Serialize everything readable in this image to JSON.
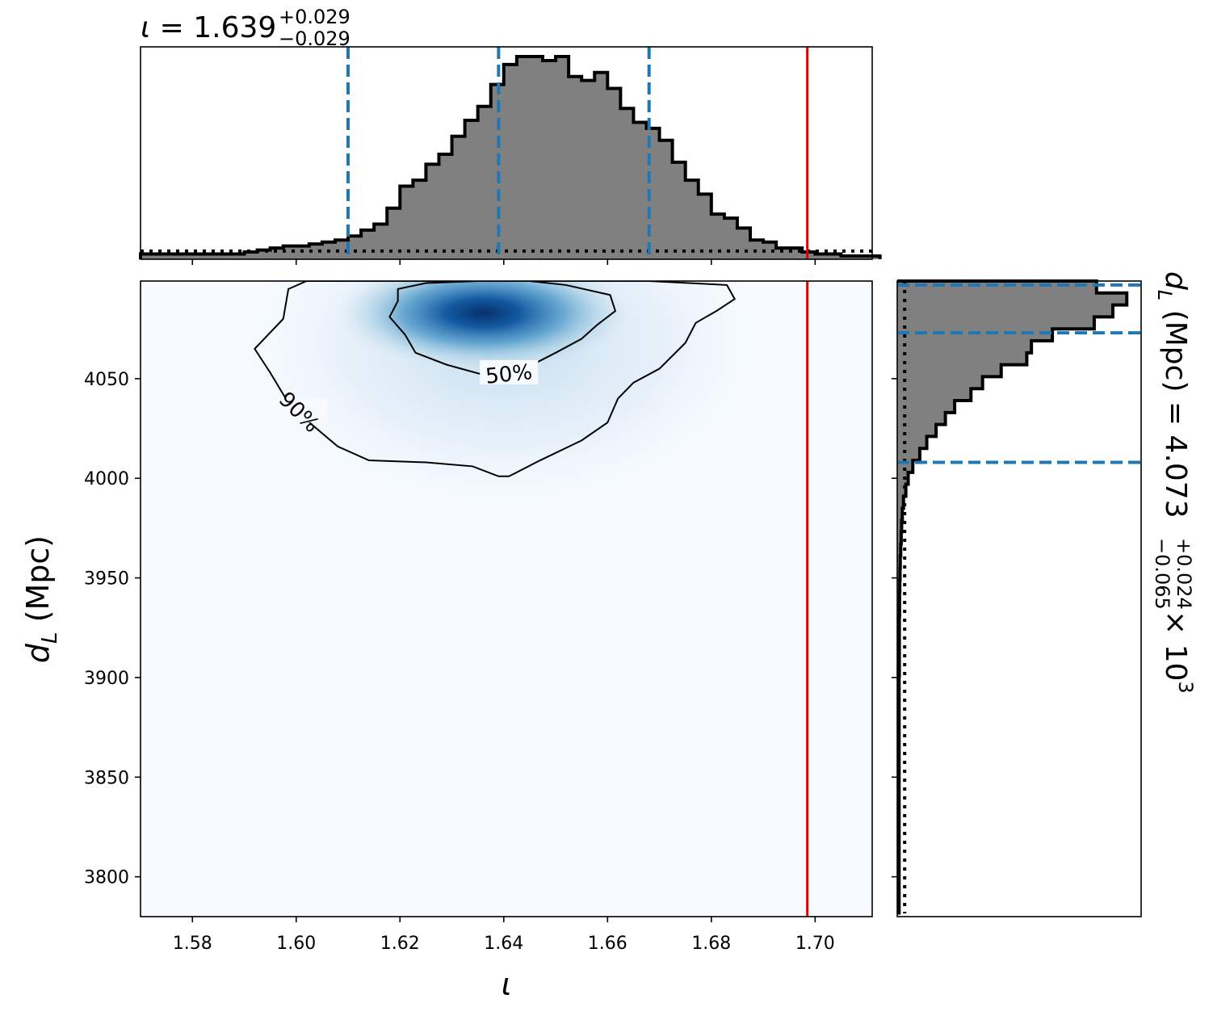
{
  "chart_data": {
    "type": "corner",
    "x_param": {
      "symbol": "ι",
      "median": "1.639",
      "err_plus": "+0.029",
      "err_minus": "−0.029",
      "median_value": 1.639,
      "lower": 1.61,
      "upper": 1.668,
      "injected": 1.6985,
      "xlim": [
        1.57,
        1.711
      ],
      "ticks": [
        1.58,
        1.6,
        1.62,
        1.64,
        1.66,
        1.68,
        1.7
      ],
      "tick_labels": [
        "1.58",
        "1.60",
        "1.62",
        "1.64",
        "1.66",
        "1.68",
        "1.70"
      ]
    },
    "y_param": {
      "symbol": "d",
      "subscript": "L",
      "unit": "(Mpc)",
      "median": "4.073",
      "err_plus": "+0.024",
      "err_minus": "−0.065",
      "exponent_text": "× 10",
      "exponent": "3",
      "median_value": 4073,
      "lower": 4008,
      "upper": 4097,
      "ylim": [
        3780,
        4099
      ],
      "ticks": [
        3800,
        3850,
        3900,
        3950,
        4000,
        4050
      ],
      "tick_labels": [
        "3800",
        "3850",
        "3900",
        "3950",
        "4000",
        "4050"
      ]
    },
    "top_hist": {
      "edges_start": 1.57,
      "bin_width": 0.0025,
      "counts": [
        0.01,
        0.01,
        0.01,
        0.01,
        0.01,
        0.01,
        0.01,
        0.01,
        0.02,
        0.03,
        0.04,
        0.05,
        0.05,
        0.06,
        0.07,
        0.08,
        0.1,
        0.13,
        0.16,
        0.24,
        0.35,
        0.38,
        0.46,
        0.51,
        0.6,
        0.68,
        0.75,
        0.86,
        0.96,
        1.0,
        1.0,
        0.98,
        1.0,
        0.9,
        0.88,
        0.92,
        0.84,
        0.74,
        0.67,
        0.64,
        0.58,
        0.47,
        0.38,
        0.31,
        0.21,
        0.19,
        0.14,
        0.08,
        0.07,
        0.04,
        0.04,
        0.02,
        0.01,
        0.01,
        0.0,
        0.0,
        0.0
      ],
      "uniform_level": 0.025,
      "quantiles": [
        1.61,
        1.639,
        1.668
      ]
    },
    "right_hist": {
      "edges_top": 4099,
      "bin_width": 6,
      "counts": [
        0.85,
        0.98,
        0.92,
        0.84,
        0.66,
        0.57,
        0.55,
        0.44,
        0.36,
        0.31,
        0.24,
        0.2,
        0.16,
        0.12,
        0.09,
        0.06,
        0.04,
        0.03,
        0.02,
        0.015,
        0.012,
        0.01,
        0.008,
        0.006,
        0.005,
        0.004,
        0.003,
        0.003,
        0.002,
        0.002,
        0.002,
        0.002,
        0.002,
        0.001,
        0.001,
        0.001,
        0.001,
        0.001,
        0.001,
        0.001,
        0.001,
        0.001,
        0.001,
        0.001,
        0.001,
        0.001,
        0.001,
        0.001,
        0.001,
        0.001,
        0.001,
        0.001,
        0.001
      ],
      "uniform_level": 0.025,
      "quantiles": [
        4097,
        4073,
        4008
      ]
    },
    "density_peak": {
      "x": 1.636,
      "y": 4083
    },
    "contours": [
      {
        "label": "50%",
        "points": [
          [
            1.6196,
            4095
          ],
          [
            1.625,
            4098
          ],
          [
            1.635,
            4099
          ],
          [
            1.645,
            4099
          ],
          [
            1.652,
            4097
          ],
          [
            1.6605,
            4092
          ],
          [
            1.6615,
            4084
          ],
          [
            1.658,
            4077
          ],
          [
            1.655,
            4070
          ],
          [
            1.65,
            4063
          ],
          [
            1.644,
            4055
          ],
          [
            1.636,
            4052
          ],
          [
            1.629,
            4057
          ],
          [
            1.623,
            4063
          ],
          [
            1.621,
            4072
          ],
          [
            1.618,
            4081
          ],
          [
            1.6196,
            4089
          ]
        ],
        "label_pos": [
          1.641,
          4052
        ]
      },
      {
        "label": "90%",
        "points": [
          [
            1.5985,
            4095
          ],
          [
            1.602,
            4099
          ],
          [
            1.625,
            4099
          ],
          [
            1.655,
            4099
          ],
          [
            1.668,
            4099
          ],
          [
            1.683,
            4097
          ],
          [
            1.6845,
            4090
          ],
          [
            1.681,
            4084
          ],
          [
            1.677,
            4078
          ],
          [
            1.675,
            4068
          ],
          [
            1.67,
            4055
          ],
          [
            1.665,
            4048
          ],
          [
            1.662,
            4040
          ],
          [
            1.66,
            4028
          ],
          [
            1.655,
            4019
          ],
          [
            1.647,
            4009
          ],
          [
            1.641,
            4001
          ],
          [
            1.639,
            4001
          ],
          [
            1.634,
            4006
          ],
          [
            1.625,
            4008
          ],
          [
            1.614,
            4009
          ],
          [
            1.608,
            4016
          ],
          [
            1.603,
            4027
          ],
          [
            1.598,
            4040
          ],
          [
            1.595,
            4053
          ],
          [
            1.592,
            4065
          ],
          [
            1.5975,
            4080
          ]
        ],
        "label_pos": [
          1.6005,
          4033
        ]
      }
    ]
  }
}
